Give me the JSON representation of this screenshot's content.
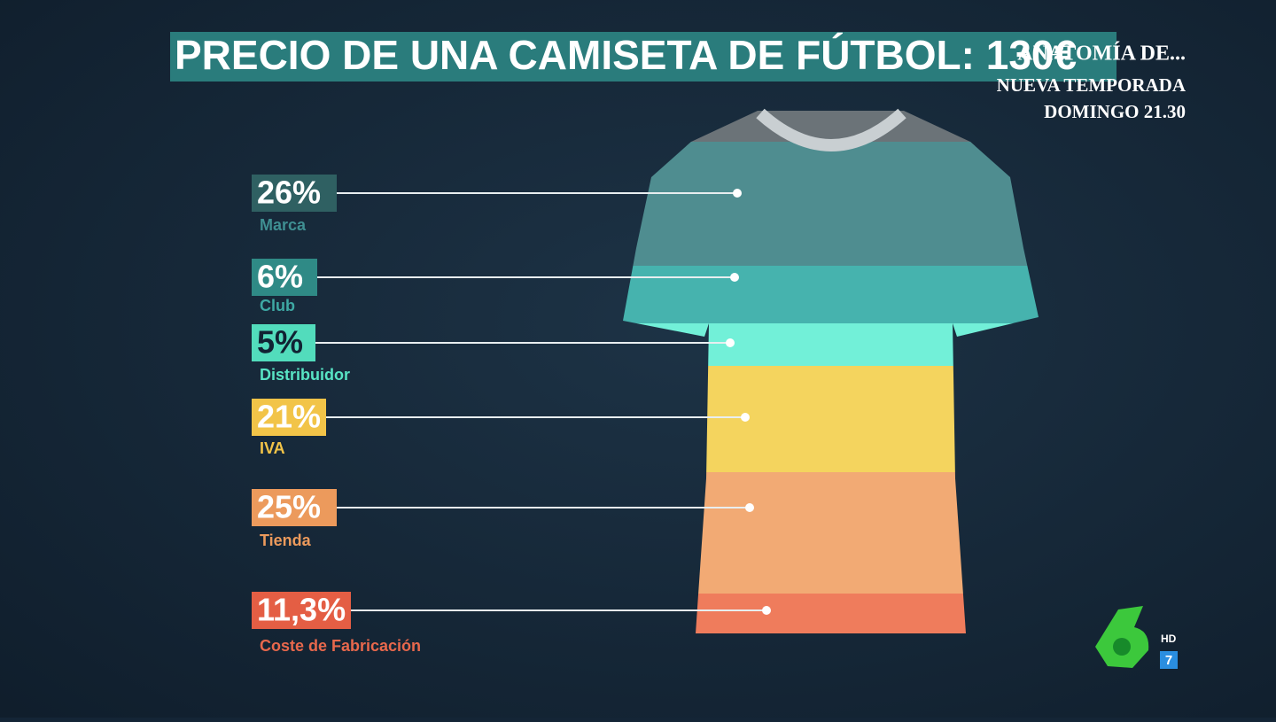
{
  "header": {
    "title": "PRECIO DE UNA CAMISETA DE FÚTBOL: 130€"
  },
  "items": [
    {
      "label": "26%",
      "name": "Marca",
      "color": "#2f6062",
      "text_color": "#3f8f92",
      "band_color": "#4f8d90"
    },
    {
      "label": "6%",
      "name": "Club",
      "color": "#2f8a86",
      "text_color": "#3ea9a4",
      "band_color": "#46b3ae"
    },
    {
      "label": "5%",
      "name": "Distribuidor",
      "color": "#52dcbc",
      "text_color": "#58e4c4",
      "band_color": "#72f0d8"
    },
    {
      "label": "21%",
      "name": "IVA",
      "color": "#f2c448",
      "text_color": "#f2c448",
      "band_color": "#f4d45e"
    },
    {
      "label": "25%",
      "name": "Tienda",
      "color": "#ec9a5c",
      "text_color": "#ec9a5c",
      "band_color": "#f2aa74"
    },
    {
      "label": "11,3%",
      "name": "Coste de Fabricación",
      "color": "#e45e44",
      "text_color": "#e8684c",
      "band_color": "#ef7c5c"
    }
  ],
  "overlay": {
    "program": "ANATOMÍA DE...",
    "line1": "NUEVA TEMPORADA",
    "line2": "DOMINGO 21.30"
  },
  "logo": {
    "hd": "HD",
    "channel": "7"
  }
}
